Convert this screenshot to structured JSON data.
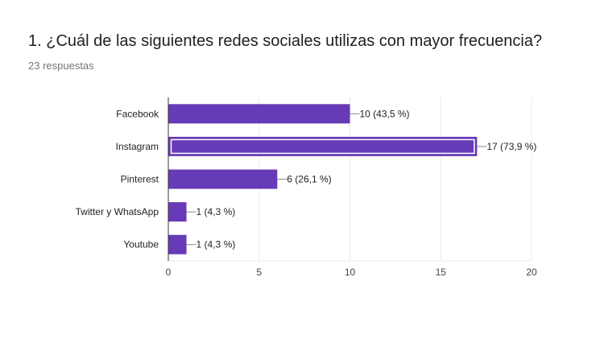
{
  "title": "1. ¿Cuál de las siguientes redes sociales utilizas con mayor frecuencia?",
  "subtitle": "23 respuestas",
  "colors": {
    "bar": "#673ab7",
    "grid": "#ebebeb",
    "axis": "#333333"
  },
  "chart_data": {
    "type": "bar",
    "orientation": "horizontal",
    "categories": [
      "Facebook",
      "Instagram",
      "Pinterest",
      "Twitter y WhatsApp",
      "Youtube"
    ],
    "values": [
      10,
      17,
      6,
      1,
      1
    ],
    "data_labels": [
      "10 (43,5 %)",
      "17 (73,9 %)",
      "6 (26,1 %)",
      "1 (4,3 %)",
      "1 (4,3 %)"
    ],
    "highlighted_index": 1,
    "xlim": [
      0,
      20
    ],
    "xticks": [
      0,
      5,
      10,
      15,
      20
    ],
    "grid": true,
    "legend": "none"
  }
}
